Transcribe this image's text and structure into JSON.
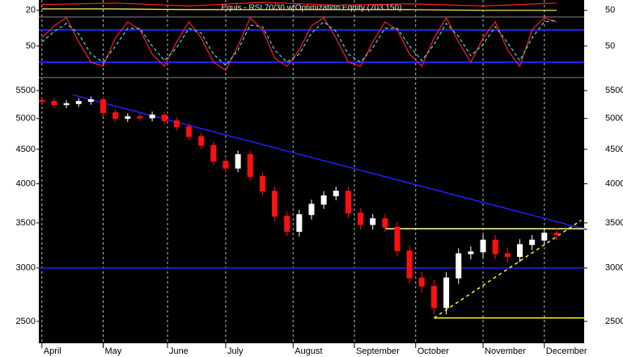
{
  "chart_data": [
    {
      "type": "line",
      "title": "Equis - RSI 70/30 w/Optimization Equity (703.150)",
      "x": [
        0,
        24,
        48,
        72,
        96,
        120,
        144,
        168
      ],
      "xlim": [
        -1,
        177
      ],
      "ylim": [
        12,
        32
      ],
      "yticks": [
        20
      ],
      "y2lim": [
        42,
        62
      ],
      "y2ticks": [
        50
      ],
      "series": [
        {
          "color": "#ffff66",
          "values": [
            22,
            22,
            21,
            21,
            21,
            21,
            20,
            20
          ]
        },
        {
          "color": "#ff2020",
          "values": [
            28,
            30,
            26,
            31,
            27,
            29,
            26,
            30
          ]
        }
      ]
    },
    {
      "type": "line",
      "x": [
        0,
        4,
        8,
        12,
        16,
        20,
        24,
        28,
        32,
        36,
        40,
        44,
        48,
        52,
        56,
        60,
        64,
        68,
        72,
        76,
        80,
        84,
        88,
        92,
        96,
        100,
        104,
        108,
        112,
        116,
        120,
        124,
        128,
        132,
        136,
        140,
        144,
        148,
        152,
        156,
        160,
        164,
        168
      ],
      "xlim": [
        -1,
        177
      ],
      "ylim": [
        15,
        83
      ],
      "yticks": [
        50
      ],
      "levels": [
        70,
        30
      ],
      "level_color": "#2020ff",
      "series": [
        {
          "color": "#ff2020",
          "values": [
            60,
            75,
            85,
            55,
            30,
            25,
            60,
            80,
            70,
            40,
            25,
            55,
            80,
            60,
            30,
            20,
            50,
            85,
            70,
            35,
            25,
            45,
            75,
            85,
            60,
            30,
            25,
            55,
            80,
            70,
            40,
            25,
            60,
            85,
            55,
            30,
            60,
            80,
            45,
            25,
            70,
            85,
            80
          ]
        },
        {
          "color": "#40e0e0",
          "dashed": true,
          "values": [
            55,
            68,
            78,
            65,
            40,
            30,
            50,
            72,
            72,
            50,
            32,
            48,
            72,
            66,
            40,
            26,
            45,
            76,
            74,
            45,
            30,
            40,
            66,
            80,
            68,
            40,
            30,
            48,
            72,
            72,
            50,
            32,
            52,
            78,
            62,
            38,
            52,
            74,
            54,
            32,
            60,
            80,
            82
          ]
        }
      ]
    },
    {
      "type": "candlestick",
      "x": [
        0,
        4,
        8,
        12,
        16,
        20,
        24,
        28,
        32,
        36,
        40,
        44,
        48,
        52,
        56,
        60,
        64,
        68,
        72,
        76,
        80,
        84,
        88,
        92,
        96,
        100,
        104,
        108,
        112,
        116,
        120,
        124,
        128,
        132,
        136,
        140,
        144,
        148,
        152,
        156,
        160,
        164,
        168
      ],
      "open": [
        5320,
        5300,
        5240,
        5260,
        5300,
        5330,
        5100,
        5000,
        5030,
        5010,
        5060,
        4960,
        4860,
        4700,
        4560,
        4320,
        4220,
        4420,
        4100,
        3900,
        3580,
        3400,
        3600,
        3730,
        3840,
        3900,
        3620,
        3480,
        3550,
        3450,
        3180,
        2900,
        2820,
        2620,
        2900,
        3150,
        3170,
        3300,
        3150,
        3120,
        3250,
        3300,
        3380
      ],
      "high": [
        5380,
        5360,
        5320,
        5360,
        5390,
        5390,
        5160,
        5090,
        5090,
        5120,
        5120,
        5020,
        4920,
        4760,
        4620,
        4380,
        4480,
        4480,
        4160,
        3960,
        3640,
        3660,
        3790,
        3900,
        3960,
        3960,
        3680,
        3610,
        3610,
        3510,
        3240,
        2960,
        2880,
        2960,
        3210,
        3230,
        3360,
        3360,
        3210,
        3310,
        3360,
        3440,
        3440
      ],
      "low": [
        5240,
        5180,
        5180,
        5200,
        5240,
        5040,
        4940,
        4940,
        4950,
        4950,
        4900,
        4800,
        4640,
        4500,
        4260,
        4160,
        4160,
        4040,
        3840,
        3520,
        3340,
        3340,
        3540,
        3670,
        3780,
        3560,
        3420,
        3420,
        3390,
        3120,
        2840,
        2760,
        2560,
        2560,
        2840,
        3090,
        3110,
        3090,
        3060,
        3060,
        3190,
        3240,
        3300
      ],
      "close": [
        5300,
        5240,
        5260,
        5300,
        5330,
        5100,
        5000,
        5030,
        5010,
        5060,
        4960,
        4860,
        4700,
        4560,
        4320,
        4220,
        4420,
        4100,
        3900,
        3580,
        3400,
        3600,
        3730,
        3840,
        3900,
        3620,
        3480,
        3550,
        3450,
        3180,
        2900,
        2820,
        2620,
        2900,
        3150,
        3170,
        3300,
        3150,
        3120,
        3250,
        3300,
        3380,
        3360
      ],
      "up_color": "#ffffff",
      "down_color": "#ff1010",
      "xlim": [
        -1,
        177
      ],
      "ylim": [
        2320,
        5640
      ],
      "log": true,
      "yticks": [
        2500,
        3000,
        3500,
        4000,
        4500,
        5000,
        5500
      ],
      "xticks": [
        {
          "value": 0,
          "label": "April"
        },
        {
          "value": 20,
          "label": "May"
        },
        {
          "value": 41,
          "label": "June"
        },
        {
          "value": 60,
          "label": "July"
        },
        {
          "value": 82,
          "label": "August"
        },
        {
          "value": 102,
          "label": "September"
        },
        {
          "value": 122,
          "label": "October"
        },
        {
          "value": 144,
          "label": "November"
        },
        {
          "value": 164,
          "label": "December"
        }
      ],
      "grid": true,
      "lines": [
        {
          "color": "#2020ff",
          "x": [
            10,
            178
          ],
          "y": [
            5420,
            3420
          ]
        },
        {
          "color": "#2020ff",
          "x": [
            -1,
            177
          ],
          "y": [
            3000,
            3000
          ]
        },
        {
          "color": "#ffff99",
          "x": [
            112,
            177
          ],
          "y": [
            3430,
            3430
          ]
        },
        {
          "color": "#ffff00",
          "x": [
            128,
            177
          ],
          "y": [
            2530,
            2530
          ]
        },
        {
          "color": "#ffff00",
          "dashed": true,
          "x": [
            128,
            176
          ],
          "y": [
            2530,
            3530
          ]
        }
      ]
    }
  ]
}
